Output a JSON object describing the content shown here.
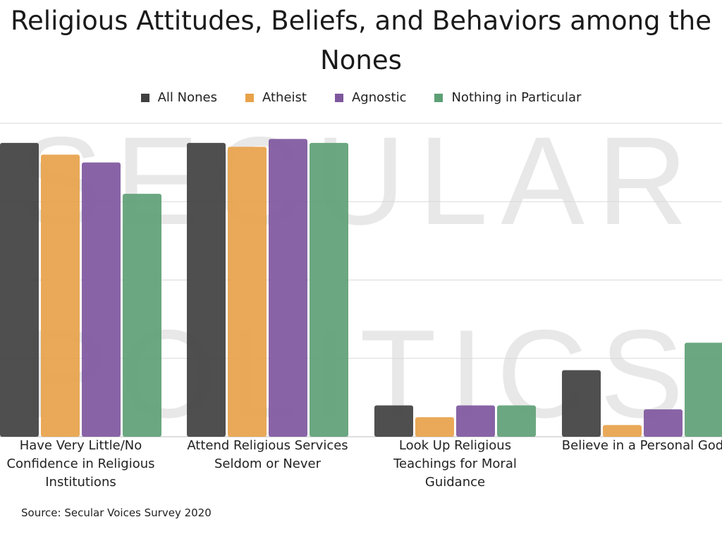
{
  "chart_data": {
    "type": "bar",
    "title": "Religious Attitudes, Beliefs, and Behaviors among the Nones",
    "categories": [
      "Have Very Little/No Confidence in Religious Institutions",
      "Attend Religious Services Seldom or Never",
      "Look Up Religious Teachings for Moral Guidance",
      "Believe in a Personal God"
    ],
    "series": [
      {
        "name": "All Nones",
        "color": "#404040",
        "values": [
          75,
          75,
          8,
          17
        ]
      },
      {
        "name": "Atheist",
        "color": "#E7A24A",
        "values": [
          72,
          74,
          5,
          3
        ]
      },
      {
        "name": "Agnostic",
        "color": "#7E579E",
        "values": [
          70,
          76,
          8,
          7
        ]
      },
      {
        "name": "Nothing in Particular",
        "color": "#5E9F76",
        "values": [
          62,
          75,
          8,
          24
        ]
      }
    ],
    "ylim": [
      0,
      80
    ],
    "grid": true,
    "xlabel": "",
    "ylabel": "",
    "legend": "top-center"
  },
  "watermark": {
    "line1": "SECULAR",
    "line2": "POLITICS"
  },
  "source": "Source: Secular Voices Survey 2020"
}
